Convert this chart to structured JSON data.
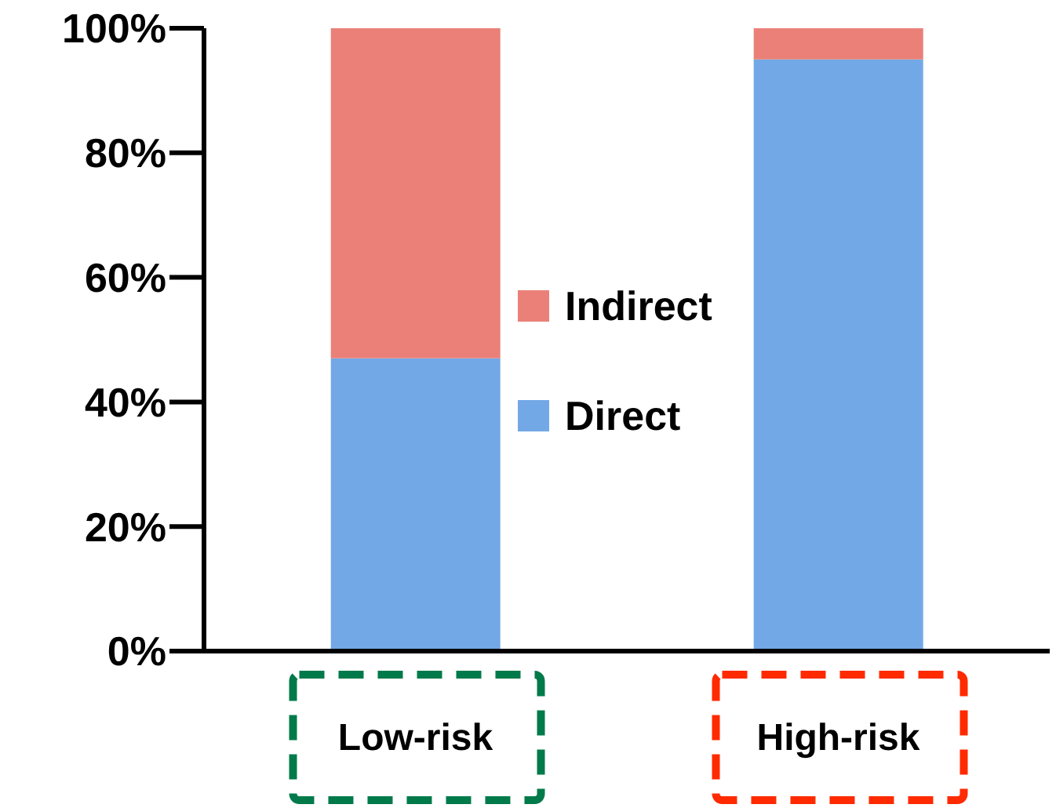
{
  "chart_data": {
    "type": "bar",
    "stacked": true,
    "categories": [
      "Low-risk",
      "High-risk"
    ],
    "series": [
      {
        "name": "Direct",
        "color": "#73a8e6",
        "values": [
          47,
          95
        ]
      },
      {
        "name": "Indirect",
        "color": "#ea8078",
        "values": [
          53,
          5
        ]
      }
    ],
    "ylim": [
      0,
      100
    ],
    "yticks": [
      {
        "value": 0,
        "label": "0%"
      },
      {
        "value": 20,
        "label": "20%"
      },
      {
        "value": 40,
        "label": "40%"
      },
      {
        "value": 60,
        "label": "60%"
      },
      {
        "value": 80,
        "label": "80%"
      },
      {
        "value": 100,
        "label": "100%"
      }
    ],
    "grid": false,
    "legend": "center"
  }
}
